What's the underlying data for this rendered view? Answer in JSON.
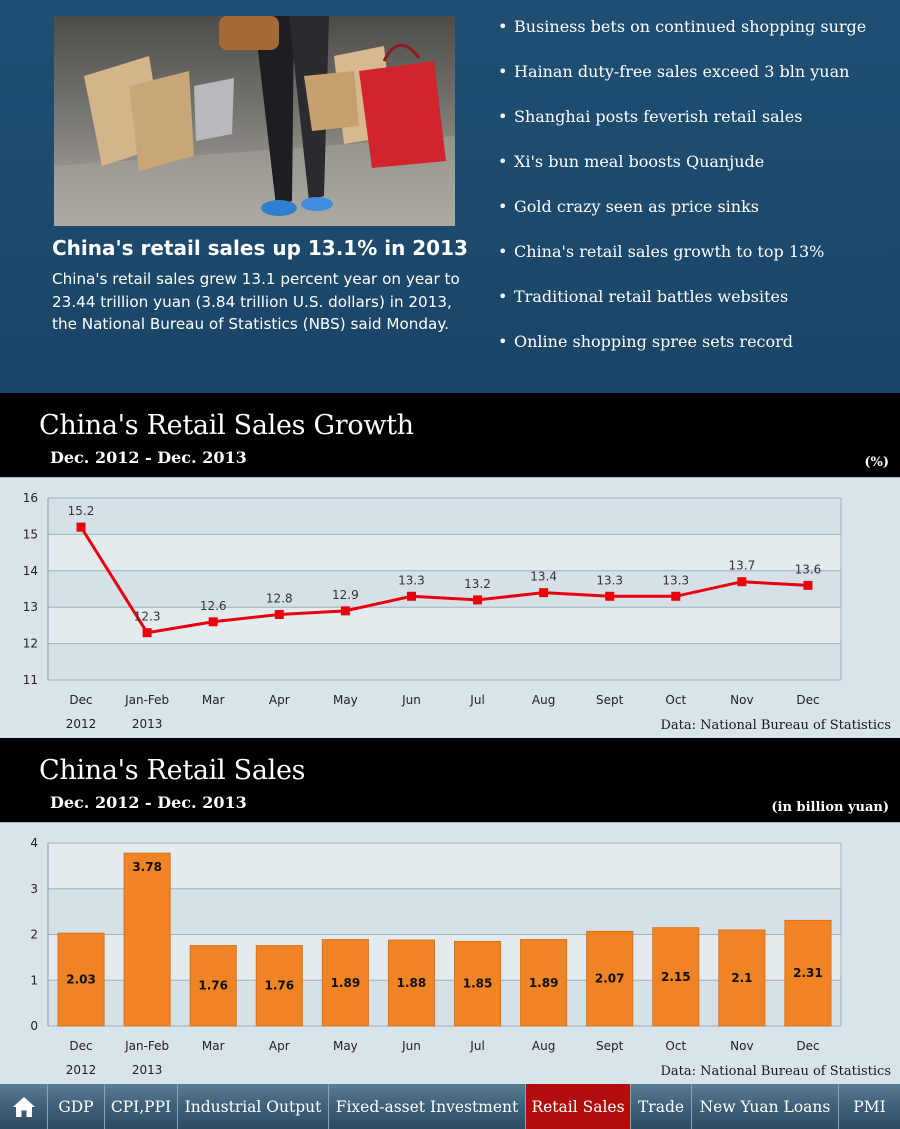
{
  "news": {
    "headline": "China's retail sales up 13.1% in 2013",
    "summary": "China's retail sales grew 13.1 percent year on year to 23.44 trillion yuan (3.84 trillion U.S. dollars) in 2013, the National Bureau of Statistics (NBS) said Monday.",
    "links": [
      "Business bets on continued shopping surge",
      "Hainan duty-free sales exceed 3 bln yuan",
      "Shanghai posts feverish retail sales",
      "Xi's bun meal boosts Quanjude",
      "Gold crazy seen as price sinks",
      "China's retail sales growth to top 13%",
      "Traditional retail battles websites",
      "Online shopping spree sets record"
    ]
  },
  "growth_header": {
    "title": "China's Retail Sales Growth",
    "subtitle": "Dec. 2012  - Dec. 2013",
    "unit": "(%)"
  },
  "sales_header": {
    "title": "China's Retail Sales",
    "subtitle": "Dec. 2012  - Dec. 2013",
    "unit": "(in billion yuan)"
  },
  "source_text": "Data: National Bureau of Statistics",
  "colors": {
    "line": "#e8000d",
    "bar": "#f08323",
    "band": "#e4ebef",
    "plot_bg": "#d5e0e7",
    "top_bg": "#1f4f73",
    "nav_active": "#b20d0d"
  },
  "nav": {
    "home_icon": "home-icon",
    "items": [
      "GDP",
      "CPI,PPI",
      "Industrial Output",
      "Fixed-asset Investment",
      "Retail Sales",
      "Trade",
      "New Yuan Loans",
      "PMI"
    ],
    "active": "Retail Sales"
  },
  "chart_data": [
    {
      "type": "line",
      "categories": [
        "Dec",
        "Jan-Feb",
        "Mar",
        "Apr",
        "May",
        "Jun",
        "Jul",
        "Aug",
        "Sept",
        "Oct",
        "Nov",
        "Dec"
      ],
      "year_labels": [
        "2012",
        "2013",
        "",
        "",
        "",
        "",
        "",
        "",
        "",
        "",
        "",
        ""
      ],
      "values": [
        15.2,
        12.3,
        12.6,
        12.8,
        12.9,
        13.3,
        13.2,
        13.4,
        13.3,
        13.3,
        13.7,
        13.6
      ],
      "ylim": [
        11,
        16
      ],
      "yticks": [
        11,
        12,
        13,
        14,
        15,
        16
      ],
      "grid": true
    },
    {
      "type": "bar",
      "categories": [
        "Dec",
        "Jan-Feb",
        "Mar",
        "Apr",
        "May",
        "Jun",
        "Jul",
        "Aug",
        "Sept",
        "Oct",
        "Nov",
        "Dec"
      ],
      "year_labels": [
        "2012",
        "2013",
        "",
        "",
        "",
        "",
        "",
        "",
        "",
        "",
        "",
        ""
      ],
      "values": [
        2.03,
        3.78,
        1.76,
        1.76,
        1.89,
        1.88,
        1.85,
        1.89,
        2.07,
        2.15,
        2.1,
        2.31
      ],
      "ylim": [
        0,
        4
      ],
      "yticks": [
        0,
        1,
        2,
        3,
        4
      ],
      "grid": true
    }
  ]
}
